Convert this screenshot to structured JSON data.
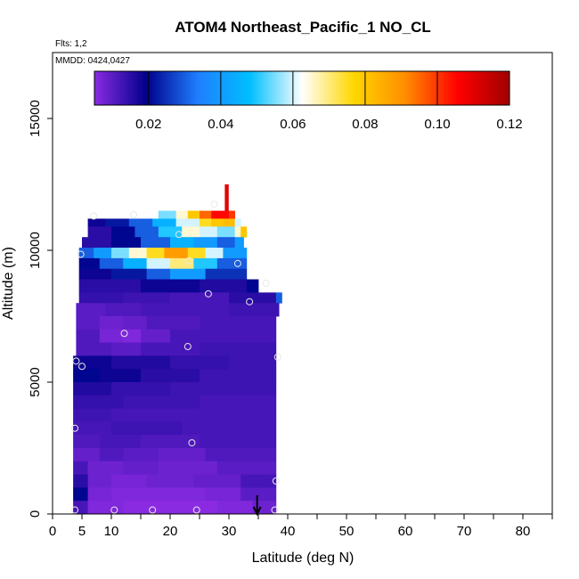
{
  "chart_data": {
    "type": "heatmap",
    "title": "ATOM4 Northeast_Pacific_1 NO_CL",
    "annotations": [
      "Flts: 1,2",
      "MMDD: 0424,0427"
    ],
    "xlabel": "Latitude (deg N)",
    "ylabel": "Altitude (m)",
    "xlim": [
      0,
      85
    ],
    "ylim": [
      0,
      17500
    ],
    "x_ticks": [
      0,
      5,
      10,
      20,
      30,
      40,
      50,
      60,
      70,
      80
    ],
    "x_tick_labels": [
      "0",
      "5",
      "10",
      "20",
      "30",
      "40",
      "50",
      "60",
      "70",
      "80"
    ],
    "y_ticks": [
      0,
      5000,
      10000,
      15000
    ],
    "y_tick_labels": [
      "0",
      "5000",
      "10000",
      "15000"
    ],
    "grid": false,
    "colorbar": {
      "ticks": [
        0.02,
        0.04,
        0.06,
        0.08,
        0.1,
        0.12
      ],
      "tick_labels": [
        "0.02",
        "0.04",
        "0.06",
        "0.08",
        "0.10",
        "0.12"
      ],
      "range": [
        0.005,
        0.12
      ],
      "colors": [
        "#8a2be2",
        "#00008b",
        "#1f7fff",
        "#00bfff",
        "#ffffff",
        "#ffd700",
        "#ff8c00",
        "#ff0000",
        "#a00000"
      ]
    },
    "arrow_marker_latitude": 34.8,
    "layers": [
      {
        "alt": [
          11500,
          12500
        ],
        "segments": [
          [
            29.3,
            29.9,
            0.11
          ]
        ]
      },
      {
        "alt": [
          11200,
          11500
        ],
        "segments": [
          [
            18,
            21,
            0.055
          ],
          [
            21,
            23,
            0.065
          ],
          [
            23,
            25,
            0.08
          ],
          [
            25,
            27,
            0.095
          ],
          [
            27,
            30,
            0.105
          ],
          [
            30,
            31,
            0.1
          ]
        ]
      },
      {
        "alt": [
          10900,
          11200
        ],
        "segments": [
          [
            6,
            9,
            0.018
          ],
          [
            9,
            13,
            0.022
          ],
          [
            13,
            17,
            0.03
          ],
          [
            17,
            21,
            0.045
          ],
          [
            21,
            25,
            0.06
          ],
          [
            25,
            27,
            0.075
          ],
          [
            27,
            29,
            0.08
          ],
          [
            29,
            31,
            0.082
          ],
          [
            31,
            32,
            0.06
          ]
        ]
      },
      {
        "alt": [
          10500,
          10900
        ],
        "segments": [
          [
            6,
            10,
            0.015
          ],
          [
            10,
            14,
            0.02
          ],
          [
            14,
            18,
            0.03
          ],
          [
            18,
            22,
            0.05
          ],
          [
            22,
            25,
            0.065
          ],
          [
            25,
            28,
            0.06
          ],
          [
            28,
            31,
            0.055
          ],
          [
            31,
            32,
            0.065
          ],
          [
            32,
            33,
            0.08
          ]
        ]
      },
      {
        "alt": [
          10100,
          10500
        ],
        "segments": [
          [
            5,
            10,
            0.015
          ],
          [
            10,
            15,
            0.02
          ],
          [
            15,
            20,
            0.03
          ],
          [
            20,
            24,
            0.045
          ],
          [
            24,
            28,
            0.04
          ],
          [
            28,
            31,
            0.03
          ],
          [
            31,
            32.5,
            0.04
          ]
        ]
      },
      {
        "alt": [
          9700,
          10100
        ],
        "segments": [
          [
            4.5,
            7,
            0.03
          ],
          [
            7,
            10,
            0.04
          ],
          [
            10,
            13,
            0.055
          ],
          [
            13,
            16,
            0.065
          ],
          [
            16,
            19,
            0.075
          ],
          [
            19,
            23,
            0.088
          ],
          [
            23,
            26,
            0.075
          ],
          [
            26,
            29,
            0.06
          ],
          [
            29,
            33,
            0.04
          ]
        ]
      },
      {
        "alt": [
          9300,
          9700
        ],
        "segments": [
          [
            4.5,
            8,
            0.02
          ],
          [
            8,
            12,
            0.03
          ],
          [
            12,
            16,
            0.045
          ],
          [
            16,
            20,
            0.06
          ],
          [
            20,
            24,
            0.07
          ],
          [
            24,
            28,
            0.05
          ],
          [
            28,
            33,
            0.03
          ]
        ]
      },
      {
        "alt": [
          8900,
          9300
        ],
        "segments": [
          [
            4.5,
            10,
            0.018
          ],
          [
            10,
            16,
            0.022
          ],
          [
            16,
            20,
            0.03
          ],
          [
            20,
            26,
            0.04
          ],
          [
            26,
            33,
            0.025
          ]
        ]
      },
      {
        "alt": [
          8400,
          8900
        ],
        "segments": [
          [
            4.5,
            15,
            0.015
          ],
          [
            15,
            25,
            0.018
          ],
          [
            25,
            33,
            0.016
          ],
          [
            33,
            35,
            0.02
          ]
        ]
      },
      {
        "alt": [
          8000,
          8400
        ],
        "segments": [
          [
            4.5,
            12,
            0.014
          ],
          [
            12,
            20,
            0.013
          ],
          [
            20,
            30,
            0.012
          ],
          [
            30,
            38,
            0.015
          ],
          [
            38,
            39,
            0.03
          ]
        ]
      },
      {
        "alt": [
          7500,
          8000
        ],
        "segments": [
          [
            4,
            9,
            0.01
          ],
          [
            9,
            15,
            0.011
          ],
          [
            15,
            22,
            0.012
          ],
          [
            22,
            30,
            0.012
          ],
          [
            30,
            38.5,
            0.013
          ]
        ]
      },
      {
        "alt": [
          7000,
          7500
        ],
        "segments": [
          [
            4,
            8,
            0.01
          ],
          [
            8,
            12,
            0.008
          ],
          [
            12,
            16,
            0.009
          ],
          [
            16,
            25,
            0.011
          ],
          [
            25,
            38,
            0.012
          ]
        ]
      },
      {
        "alt": [
          6500,
          7000
        ],
        "segments": [
          [
            4,
            8,
            0.011
          ],
          [
            8,
            12,
            0.007
          ],
          [
            12,
            15,
            0.006
          ],
          [
            15,
            20,
            0.009
          ],
          [
            20,
            38,
            0.012
          ]
        ]
      },
      {
        "alt": [
          6000,
          6500
        ],
        "segments": [
          [
            4,
            10,
            0.011
          ],
          [
            10,
            15,
            0.01
          ],
          [
            15,
            25,
            0.012
          ],
          [
            25,
            38,
            0.013
          ]
        ]
      },
      {
        "alt": [
          5500,
          6000
        ],
        "segments": [
          [
            3.5,
            10,
            0.018
          ],
          [
            10,
            20,
            0.016
          ],
          [
            20,
            30,
            0.014
          ],
          [
            30,
            38,
            0.013
          ]
        ]
      },
      {
        "alt": [
          5000,
          5500
        ],
        "segments": [
          [
            3.5,
            8,
            0.02
          ],
          [
            8,
            15,
            0.018
          ],
          [
            15,
            25,
            0.015
          ],
          [
            25,
            38,
            0.013
          ]
        ]
      },
      {
        "alt": [
          4500,
          5000
        ],
        "segments": [
          [
            3.5,
            10,
            0.016
          ],
          [
            10,
            20,
            0.014
          ],
          [
            20,
            38,
            0.013
          ]
        ]
      },
      {
        "alt": [
          4000,
          4500
        ],
        "segments": [
          [
            3.5,
            12,
            0.014
          ],
          [
            12,
            25,
            0.013
          ],
          [
            25,
            38,
            0.012
          ]
        ]
      },
      {
        "alt": [
          3500,
          4000
        ],
        "segments": [
          [
            3.5,
            10,
            0.013
          ],
          [
            10,
            20,
            0.012
          ],
          [
            20,
            38,
            0.012
          ]
        ]
      },
      {
        "alt": [
          3000,
          3500
        ],
        "segments": [
          [
            3.5,
            10,
            0.012
          ],
          [
            10,
            22,
            0.013
          ],
          [
            22,
            38,
            0.012
          ]
        ]
      },
      {
        "alt": [
          2500,
          3000
        ],
        "segments": [
          [
            3.5,
            8,
            0.011
          ],
          [
            8,
            15,
            0.012
          ],
          [
            15,
            25,
            0.011
          ],
          [
            25,
            38,
            0.012
          ]
        ]
      },
      {
        "alt": [
          2000,
          2500
        ],
        "segments": [
          [
            3.5,
            8,
            0.009
          ],
          [
            8,
            12,
            0.011
          ],
          [
            12,
            18,
            0.01
          ],
          [
            18,
            26,
            0.009
          ],
          [
            26,
            38,
            0.011
          ]
        ]
      },
      {
        "alt": [
          1500,
          2000
        ],
        "segments": [
          [
            3.5,
            6,
            0.012
          ],
          [
            6,
            12,
            0.008
          ],
          [
            12,
            18,
            0.009
          ],
          [
            18,
            28,
            0.008
          ],
          [
            28,
            38,
            0.01
          ]
        ]
      },
      {
        "alt": [
          1000,
          1500
        ],
        "segments": [
          [
            3.5,
            6,
            0.015
          ],
          [
            6,
            10,
            0.008
          ],
          [
            10,
            16,
            0.007
          ],
          [
            16,
            24,
            0.008
          ],
          [
            24,
            32,
            0.009
          ],
          [
            32,
            38,
            0.012
          ]
        ]
      },
      {
        "alt": [
          500,
          1000
        ],
        "segments": [
          [
            3.5,
            6,
            0.02
          ],
          [
            6,
            10,
            0.007
          ],
          [
            10,
            18,
            0.006
          ],
          [
            18,
            26,
            0.006
          ],
          [
            26,
            32,
            0.007
          ],
          [
            32,
            38,
            0.01
          ]
        ]
      },
      {
        "alt": [
          0,
          500
        ],
        "segments": [
          [
            3.5,
            6,
            0.012
          ],
          [
            6,
            12,
            0.006
          ],
          [
            12,
            20,
            0.005
          ],
          [
            20,
            28,
            0.005
          ],
          [
            28,
            34,
            0.006
          ],
          [
            34,
            38,
            0.008
          ]
        ]
      }
    ],
    "points": [
      {
        "lat": 7,
        "alt": 11300
      },
      {
        "lat": 13.8,
        "alt": 11350
      },
      {
        "lat": 21.5,
        "alt": 10600
      },
      {
        "lat": 27.5,
        "alt": 11750
      },
      {
        "lat": 4.8,
        "alt": 9850
      },
      {
        "lat": 23.2,
        "alt": 9600
      },
      {
        "lat": 31.5,
        "alt": 9500
      },
      {
        "lat": 36.3,
        "alt": 8750
      },
      {
        "lat": 26.5,
        "alt": 8350
      },
      {
        "lat": 33.5,
        "alt": 8050
      },
      {
        "lat": 12.2,
        "alt": 6850
      },
      {
        "lat": 23,
        "alt": 6350
      },
      {
        "lat": 4,
        "alt": 5800
      },
      {
        "lat": 5,
        "alt": 5600
      },
      {
        "lat": 38.3,
        "alt": 5950
      },
      {
        "lat": 3.8,
        "alt": 3250
      },
      {
        "lat": 23.7,
        "alt": 2700
      },
      {
        "lat": 38,
        "alt": 1250
      },
      {
        "lat": 3.8,
        "alt": 150
      },
      {
        "lat": 10.5,
        "alt": 150
      },
      {
        "lat": 17,
        "alt": 150
      },
      {
        "lat": 24.5,
        "alt": 150
      },
      {
        "lat": 37.8,
        "alt": 150
      }
    ]
  }
}
